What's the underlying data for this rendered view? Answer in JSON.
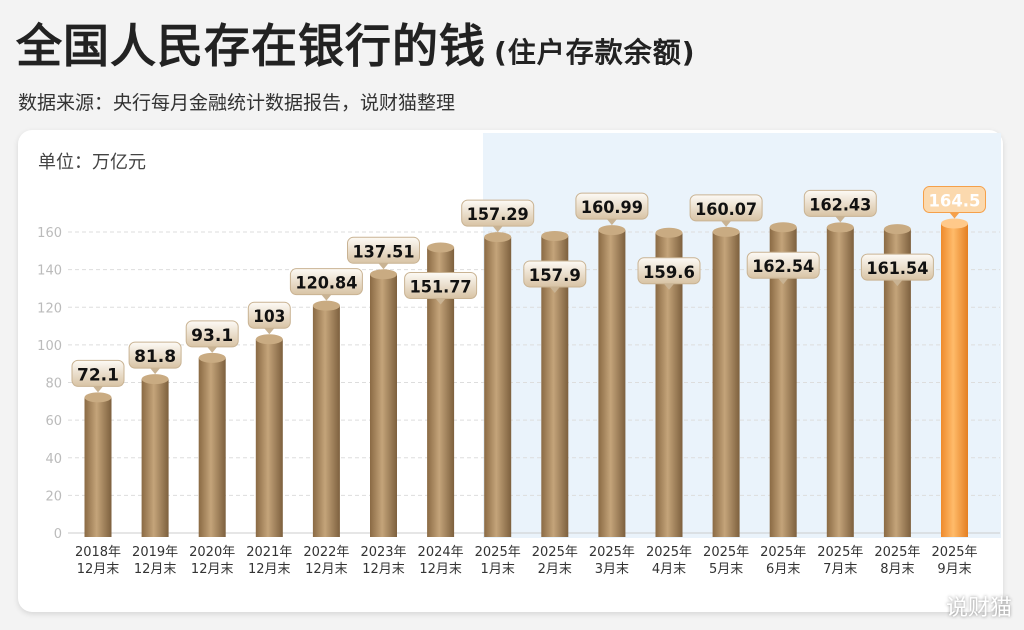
{
  "header": {
    "title": "全国人民存在银行的钱",
    "subtitle": "(住户存款余额)",
    "source": "数据来源：央行每月金融统计数据报告，说财猫整理"
  },
  "watermark": "说财猫",
  "colors": {
    "bar": "#a8875e",
    "highlight": "#f5a04a",
    "recent_bg": "#eaf3fb"
  },
  "chart_data": {
    "type": "bar",
    "title": "全国人民存在银行的钱",
    "ylabel": "单位：万亿元",
    "ylim": [
      0,
      170
    ],
    "yticks": [
      0,
      20,
      40,
      60,
      80,
      100,
      120,
      140,
      160
    ],
    "grid": true,
    "categories": [
      [
        "2018年",
        "12月末"
      ],
      [
        "2019年",
        "12月末"
      ],
      [
        "2020年",
        "12月末"
      ],
      [
        "2021年",
        "12月末"
      ],
      [
        "2022年",
        "12月末"
      ],
      [
        "2023年",
        "12月末"
      ],
      [
        "2024年",
        "12月末"
      ],
      [
        "2025年",
        "1月末"
      ],
      [
        "2025年",
        "2月末"
      ],
      [
        "2025年",
        "3月末"
      ],
      [
        "2025年",
        "4月末"
      ],
      [
        "2025年",
        "5月末"
      ],
      [
        "2025年",
        "6月末"
      ],
      [
        "2025年",
        "7月末"
      ],
      [
        "2025年",
        "8月末"
      ],
      [
        "2025年",
        "9月末"
      ]
    ],
    "values": [
      72.1,
      81.8,
      93.1,
      103,
      120.84,
      137.51,
      151.77,
      157.29,
      157.9,
      160.99,
      159.6,
      160.07,
      162.54,
      162.43,
      161.54,
      164.5
    ],
    "labels": [
      "72.1",
      "81.8",
      "93.1",
      "103",
      "120.84",
      "137.51",
      "151.77",
      "157.29",
      "157.9",
      "160.99",
      "159.6",
      "160.07",
      "162.54",
      "162.43",
      "161.54",
      "164.5"
    ],
    "highlight_index": 15
  }
}
